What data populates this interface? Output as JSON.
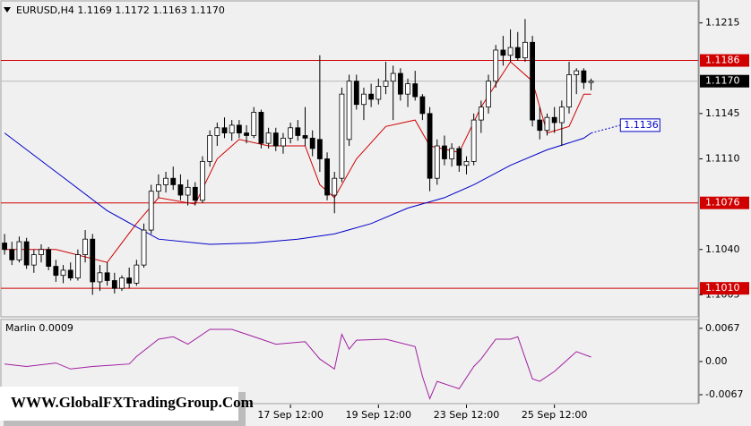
{
  "chart_data": {
    "type": "candlestick",
    "title": "EURUSD,H4",
    "quote": [
      "1.1169",
      "1.1172",
      "1.1163",
      "1.1170"
    ],
    "xlim": [
      -0.5,
      94.6
    ],
    "ylim": [
      1.0988,
      1.1232
    ],
    "yticks": [
      1.1215,
      1.1145,
      {
        "value": 1.111,
        "label": "1.1110"
      },
      {
        "value": 1.104,
        "label": "1.1040"
      },
      1.1005
    ],
    "xticks": [
      {
        "value": 39,
        "label": "17 Sep 12:00"
      },
      {
        "value": 51,
        "label": "19 Sep 12:00"
      },
      {
        "value": 63,
        "label": "23 Sep 12:00"
      },
      {
        "value": 75,
        "label": "25 Sep 12:00"
      }
    ],
    "up_color": "#ffffff",
    "down_color": "#000000",
    "open": [
      1.1045,
      1.104,
      1.1032,
      1.1046,
      1.1028,
      1.1036,
      1.104,
      1.1027,
      1.102,
      1.1024,
      1.1018,
      1.1036,
      1.1048,
      1.1015,
      1.1022,
      1.1016,
      1.101,
      1.1018,
      1.1014,
      1.1028,
      1.1055,
      1.1085,
      1.109,
      1.1095,
      1.109,
      1.1082,
      1.1088,
      1.1078,
      1.1108,
      1.1128,
      1.1134,
      1.113,
      1.1136,
      1.113,
      1.1128,
      1.1146,
      1.1122,
      1.113,
      1.112,
      1.1126,
      1.1134,
      1.1128,
      1.1126,
      1.1125,
      1.111,
      1.1082,
      1.1095,
      1.1125,
      1.117,
      1.1152,
      1.116,
      1.1156,
      1.1166,
      1.117,
      1.1176,
      1.116,
      1.1168,
      1.1158,
      1.1145,
      1.1095,
      1.112,
      1.111,
      1.1118,
      1.1105,
      1.1108,
      1.114,
      1.115,
      1.117,
      1.1194,
      1.119,
      1.1196,
      1.1188,
      1.12,
      1.114,
      1.1132,
      1.1142,
      1.1138,
      1.115,
      1.1175,
      1.1178,
      1.1169
    ],
    "high": [
      1.1052,
      1.1046,
      1.105,
      1.1049,
      1.104,
      1.1044,
      1.1042,
      1.1032,
      1.1028,
      1.103,
      1.104,
      1.1055,
      1.1052,
      1.1028,
      1.103,
      1.1022,
      1.102,
      1.1026,
      1.1032,
      1.106,
      1.109,
      1.1098,
      1.11,
      1.1104,
      1.1098,
      1.1094,
      1.1092,
      1.1112,
      1.1132,
      1.1138,
      1.1142,
      1.114,
      1.114,
      1.1136,
      1.115,
      1.1148,
      1.1134,
      1.1134,
      1.113,
      1.1138,
      1.114,
      1.115,
      1.1132,
      1.119,
      1.1115,
      1.11,
      1.1165,
      1.1175,
      1.1175,
      1.1165,
      1.1168,
      1.1172,
      1.1185,
      1.1182,
      1.118,
      1.1172,
      1.1178,
      1.116,
      1.115,
      1.1125,
      1.1128,
      1.1122,
      1.112,
      1.1112,
      1.1145,
      1.1155,
      1.1175,
      1.1198,
      1.1205,
      1.121,
      1.1208,
      1.1218,
      1.1205,
      1.115,
      1.1145,
      1.115,
      1.1155,
      1.1185,
      1.118,
      1.118,
      1.1172
    ],
    "low": [
      1.1036,
      1.1028,
      1.103,
      1.1025,
      1.1022,
      1.103,
      1.1024,
      1.1015,
      1.1014,
      1.1016,
      1.1016,
      1.103,
      1.1005,
      1.1008,
      1.1012,
      1.1006,
      1.1008,
      1.101,
      1.1012,
      1.1026,
      1.1052,
      1.108,
      1.1084,
      1.1086,
      1.1078,
      1.1074,
      1.1074,
      1.1076,
      1.1104,
      1.112,
      1.1126,
      1.1124,
      1.1126,
      1.1122,
      1.1126,
      1.1118,
      1.1118,
      1.1116,
      1.1114,
      1.1122,
      1.1124,
      1.112,
      1.1112,
      1.11,
      1.1078,
      1.1068,
      1.1092,
      1.112,
      1.1148,
      1.114,
      1.115,
      1.1152,
      1.116,
      1.114,
      1.1155,
      1.115,
      1.1155,
      1.114,
      1.1085,
      1.109,
      1.1105,
      1.1104,
      1.11,
      1.1098,
      1.1105,
      1.113,
      1.1145,
      1.1165,
      1.1182,
      1.1185,
      1.1186,
      1.1185,
      1.1135,
      1.1125,
      1.1128,
      1.113,
      1.112,
      1.1145,
      1.116,
      1.1164,
      1.1163
    ],
    "close": [
      1.104,
      1.1032,
      1.1046,
      1.1028,
      1.1036,
      1.104,
      1.1027,
      1.102,
      1.1024,
      1.1018,
      1.1036,
      1.1048,
      1.1015,
      1.1022,
      1.1016,
      1.101,
      1.1018,
      1.1014,
      1.1028,
      1.1055,
      1.1085,
      1.109,
      1.1095,
      1.109,
      1.1082,
      1.1088,
      1.1078,
      1.1108,
      1.1128,
      1.1134,
      1.113,
      1.1136,
      1.113,
      1.1128,
      1.1146,
      1.1122,
      1.113,
      1.112,
      1.1126,
      1.1134,
      1.1128,
      1.1126,
      1.1118,
      1.111,
      1.1082,
      1.1095,
      1.116,
      1.117,
      1.1152,
      1.116,
      1.1156,
      1.1166,
      1.117,
      1.1176,
      1.116,
      1.1168,
      1.1158,
      1.1145,
      1.1095,
      1.112,
      1.111,
      1.1118,
      1.1105,
      1.1108,
      1.114,
      1.115,
      1.117,
      1.1194,
      1.119,
      1.1196,
      1.1188,
      1.12,
      1.114,
      1.1132,
      1.1142,
      1.1138,
      1.115,
      1.1175,
      1.1178,
      1.1169,
      1.117
    ],
    "lines": [
      {
        "color": "#d00000",
        "x": [
          0,
          7,
          14,
          18,
          21,
          26,
          29,
          32,
          36,
          41,
          43,
          45,
          48,
          52,
          56,
          58,
          62,
          65,
          69,
          72,
          74,
          77,
          79,
          80
        ],
        "values": [
          1.104,
          1.104,
          1.103,
          1.106,
          1.108,
          1.1075,
          1.111,
          1.1125,
          1.112,
          1.112,
          1.109,
          1.108,
          1.111,
          1.1135,
          1.114,
          1.112,
          1.1115,
          1.115,
          1.1185,
          1.117,
          1.113,
          1.1135,
          1.116,
          1.116
        ]
      },
      {
        "color": "#0000c8",
        "x": [
          0,
          7,
          14,
          21,
          28,
          34,
          40,
          45,
          50,
          55,
          60,
          64,
          69,
          74,
          79,
          80
        ],
        "values": [
          1.113,
          1.11,
          1.107,
          1.1048,
          1.1044,
          1.1045,
          1.1048,
          1.1052,
          1.106,
          1.1072,
          1.108,
          1.109,
          1.1105,
          1.1117,
          1.1126,
          1.113
        ]
      },
      {
        "color": "#0000c8",
        "dotted": true,
        "x": [
          80,
          84
        ],
        "values": [
          1.113,
          1.1136
        ]
      }
    ],
    "hlines": [
      {
        "value": 1.1186,
        "label": "1.1186",
        "color": "#d00000"
      },
      {
        "value": 1.1076,
        "label": "1.1076",
        "color": "#d00000"
      },
      {
        "value": 1.101,
        "label": "1.1010",
        "color": "#d00000"
      }
    ],
    "current_price": {
      "value": 1.117,
      "label": "1.1170"
    },
    "ma_label": {
      "x": 84,
      "value": 1.1136,
      "label": "1.1136",
      "color": "#0000c8"
    },
    "indicator": {
      "title": "Marlin 0.0009",
      "color": "#a020a0",
      "ylim": [
        -0.0085,
        0.0083
      ],
      "yticks": [
        0.0067,
        {
          "value": 0,
          "label": "0.00"
        },
        -0.0067
      ],
      "x": [
        0,
        3,
        7,
        9,
        12,
        14,
        17,
        18,
        21,
        23,
        25,
        28,
        31,
        33,
        35,
        37,
        41,
        43,
        45,
        46,
        47,
        48,
        52,
        56,
        57,
        58,
        59,
        62,
        64,
        65,
        67,
        69,
        70,
        72,
        73,
        75,
        78,
        80
      ],
      "values": [
        -0.0005,
        -0.001,
        -0.0003,
        -0.0015,
        -0.001,
        -0.0008,
        -0.0005,
        0.001,
        0.0045,
        0.005,
        0.0035,
        0.0065,
        0.0065,
        0.0055,
        0.0045,
        0.0035,
        0.004,
        0.0005,
        -0.0015,
        0.0055,
        0.0025,
        0.0043,
        0.0045,
        0.003,
        -0.003,
        -0.0075,
        -0.004,
        -0.0055,
        -0.001,
        0.0005,
        0.0045,
        0.0045,
        0.005,
        -0.0035,
        -0.004,
        -0.002,
        0.002,
        0.0009
      ]
    },
    "watermark": "WWW.GlobalFXTradingGroup.Com"
  }
}
